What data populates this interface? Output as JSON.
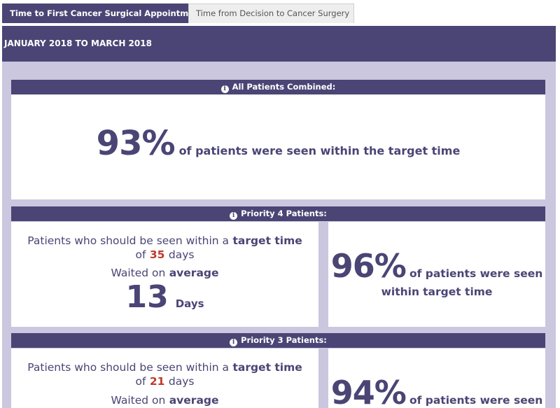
{
  "tabs": [
    {
      "label": "Time to First Cancer Surgical Appointment",
      "active": true
    },
    {
      "label": "Time from Decision to Cancer Surgery",
      "active": false
    }
  ],
  "period": "JANUARY 2018 TO MARCH 2018",
  "all_patients": {
    "header": "All Patients Combined:",
    "percent": "93%",
    "text": "of patients were seen within the target time"
  },
  "priority4": {
    "header": "Priority 4 Patients:",
    "target_prefix": "Patients who should be seen within a",
    "target_time_label": "target time",
    "of_word": "of",
    "target_days": "35",
    "days_word": "days",
    "waited_prefix": "Waited on",
    "average_label": "average",
    "average_days": "13",
    "average_unit": "Days",
    "percent": "96%",
    "seen_text": "of patients were seen",
    "within_text": "within",
    "within_bold": "target time"
  },
  "priority3": {
    "header": "Priority 3 Patients:",
    "target_prefix": "Patients who should be seen within a",
    "target_time_label": "target time",
    "of_word": "of",
    "target_days": "21",
    "days_word": "days",
    "waited_prefix": "Waited on",
    "average_label": "average",
    "percent": "94%",
    "seen_text": "of patients were seen"
  },
  "colors": {
    "primary": "#4a4575",
    "frame": "#cac7df",
    "highlight": "#c0392b"
  },
  "icons": [
    "info-icon"
  ]
}
